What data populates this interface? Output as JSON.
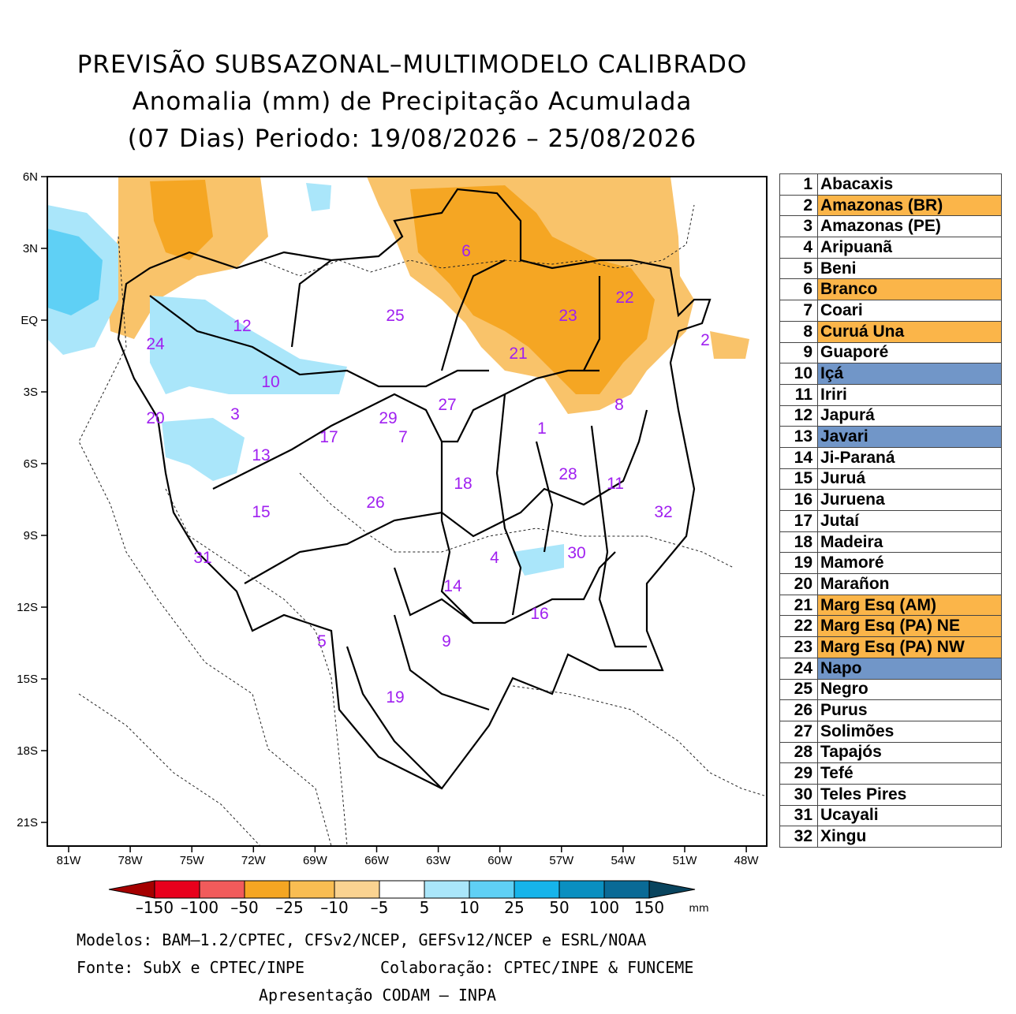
{
  "title": {
    "line1": "PREVISÃO SUBSAZONAL–MULTIMODELO CALIBRADO",
    "line2": "Anomalia (mm) de Precipitação Acumulada",
    "line3": "(07 Dias) Periodo: 19/08/2026 – 25/08/2026"
  },
  "axes": {
    "lat_labels": [
      "6N",
      "3N",
      "EQ",
      "3S",
      "6S",
      "9S",
      "12S",
      "15S",
      "18S",
      "21S"
    ],
    "lon_labels": [
      "81W",
      "78W",
      "75W",
      "72W",
      "69W",
      "66W",
      "63W",
      "60W",
      "57W",
      "54W",
      "51W",
      "48W"
    ]
  },
  "basin_labels": [
    "1",
    "2",
    "3",
    "4",
    "5",
    "6",
    "7",
    "8",
    "9",
    "10",
    "11",
    "12",
    "13",
    "14",
    "15",
    "16",
    "17",
    "18",
    "19",
    "20",
    "21",
    "22",
    "23",
    "24",
    "25",
    "26",
    "27",
    "28",
    "29",
    "30",
    "31",
    "32"
  ],
  "basins": [
    {
      "n": "1",
      "name": "Abacaxis",
      "hl": "none"
    },
    {
      "n": "2",
      "name": "Amazonas (BR)",
      "hl": "orange"
    },
    {
      "n": "3",
      "name": "Amazonas (PE)",
      "hl": "none"
    },
    {
      "n": "4",
      "name": "Aripuanã",
      "hl": "none"
    },
    {
      "n": "5",
      "name": "Beni",
      "hl": "none"
    },
    {
      "n": "6",
      "name": "Branco",
      "hl": "orange"
    },
    {
      "n": "7",
      "name": "Coari",
      "hl": "none"
    },
    {
      "n": "8",
      "name": "Curuá Una",
      "hl": "orange"
    },
    {
      "n": "9",
      "name": "Guaporé",
      "hl": "none"
    },
    {
      "n": "10",
      "name": "Içá",
      "hl": "blue"
    },
    {
      "n": "11",
      "name": "Iriri",
      "hl": "none"
    },
    {
      "n": "12",
      "name": "Japurá",
      "hl": "none"
    },
    {
      "n": "13",
      "name": "Javari",
      "hl": "blue"
    },
    {
      "n": "14",
      "name": "Ji-Paraná",
      "hl": "none"
    },
    {
      "n": "15",
      "name": "Juruá",
      "hl": "none"
    },
    {
      "n": "16",
      "name": "Juruena",
      "hl": "none"
    },
    {
      "n": "17",
      "name": "Jutaí",
      "hl": "none"
    },
    {
      "n": "18",
      "name": "Madeira",
      "hl": "none"
    },
    {
      "n": "19",
      "name": "Mamoré",
      "hl": "none"
    },
    {
      "n": "20",
      "name": "Marañon",
      "hl": "none"
    },
    {
      "n": "21",
      "name": "Marg Esq (AM)",
      "hl": "orange"
    },
    {
      "n": "22",
      "name": "Marg Esq (PA) NE",
      "hl": "orange"
    },
    {
      "n": "23",
      "name": "Marg Esq (PA) NW",
      "hl": "orange"
    },
    {
      "n": "24",
      "name": "Napo",
      "hl": "blue"
    },
    {
      "n": "25",
      "name": "Negro",
      "hl": "none"
    },
    {
      "n": "26",
      "name": "Purus",
      "hl": "none"
    },
    {
      "n": "27",
      "name": "Solimões",
      "hl": "none"
    },
    {
      "n": "28",
      "name": "Tapajós",
      "hl": "none"
    },
    {
      "n": "29",
      "name": "Tefé",
      "hl": "none"
    },
    {
      "n": "30",
      "name": "Teles Pires",
      "hl": "none"
    },
    {
      "n": "31",
      "name": "Ucayali",
      "hl": "none"
    },
    {
      "n": "32",
      "name": "Xingu",
      "hl": "none"
    }
  ],
  "colorbar": {
    "labels": [
      "–150",
      "–100",
      "–50",
      "–25",
      "–10",
      "–5",
      "5",
      "10",
      "25",
      "50",
      "100",
      "150"
    ],
    "unit": "mm",
    "colors": [
      "#a50000",
      "#e8001c",
      "#f15b5b",
      "#f5a623",
      "#f9bd52",
      "#fad391",
      "#ffffff",
      "#aae6fa",
      "#5fd0f5",
      "#16b4ea",
      "#0a8fc0",
      "#0a6a96",
      "#09445e"
    ]
  },
  "footer": {
    "models": "Modelos: BAM–1.2/CPTEC, CFSv2/NCEP, GEFSv12/NCEP e ESRL/NOAA",
    "source": "Fonte: SubX e CPTEC/INPE",
    "collab": "Colaboração: CPTEC/INPE & FUNCEME",
    "presentation": "Apresentação CODAM – INPA"
  }
}
